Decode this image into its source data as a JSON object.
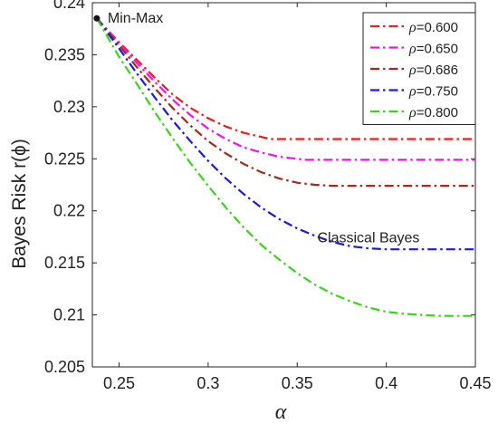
{
  "chart_data": {
    "type": "line",
    "title": "",
    "xlabel": "α",
    "ylabel": "Bayes Risk r(ϕ)",
    "xlim": [
      0.235,
      0.45
    ],
    "ylim": [
      0.205,
      0.24
    ],
    "xticks": [
      0.25,
      0.3,
      0.35,
      0.4,
      0.45
    ],
    "xtick_labels": [
      "0.25",
      "0.3",
      "0.35",
      "0.4",
      "0.45"
    ],
    "yticks": [
      0.205,
      0.21,
      0.215,
      0.22,
      0.225,
      0.23,
      0.235,
      0.24
    ],
    "ytick_labels": [
      "0.205",
      "0.21",
      "0.215",
      "0.22",
      "0.225",
      "0.23",
      "0.235",
      "0.24"
    ],
    "grid": false,
    "legend_position": "top-right",
    "series": [
      {
        "name": "ρ=0.600",
        "symbol": "ρ",
        "value_text": "=0.600",
        "color": "#ee1c1c",
        "x": [
          0.2375,
          0.25,
          0.26,
          0.27,
          0.28,
          0.29,
          0.3,
          0.31,
          0.32,
          0.33,
          0.335,
          0.34,
          0.36,
          0.38,
          0.4,
          0.42,
          0.45
        ],
        "y": [
          0.2385,
          0.2362,
          0.2345,
          0.2328,
          0.2312,
          0.2299,
          0.2289,
          0.2281,
          0.2275,
          0.2271,
          0.2269,
          0.2269,
          0.2269,
          0.2269,
          0.2269,
          0.2269,
          0.2269
        ]
      },
      {
        "name": "ρ=0.650",
        "symbol": "ρ",
        "value_text": "=0.650",
        "color": "#ee14ee",
        "x": [
          0.2375,
          0.25,
          0.26,
          0.27,
          0.28,
          0.29,
          0.3,
          0.31,
          0.32,
          0.33,
          0.34,
          0.35,
          0.355,
          0.36,
          0.38,
          0.4,
          0.42,
          0.45
        ],
        "y": [
          0.2385,
          0.2361,
          0.2342,
          0.2324,
          0.2307,
          0.2292,
          0.2279,
          0.2269,
          0.2261,
          0.2256,
          0.2252,
          0.225,
          0.2249,
          0.2249,
          0.2249,
          0.2249,
          0.2249,
          0.2249
        ]
      },
      {
        "name": "ρ=0.686",
        "symbol": "ρ",
        "value_text": "=0.686",
        "color": "#a52a1a",
        "x": [
          0.2375,
          0.25,
          0.26,
          0.27,
          0.28,
          0.29,
          0.3,
          0.31,
          0.32,
          0.33,
          0.34,
          0.35,
          0.36,
          0.37,
          0.38,
          0.4,
          0.42,
          0.45
        ],
        "y": [
          0.2385,
          0.2359,
          0.2338,
          0.2318,
          0.2299,
          0.2282,
          0.2267,
          0.2255,
          0.2245,
          0.2237,
          0.2231,
          0.2227,
          0.2225,
          0.2224,
          0.2224,
          0.2224,
          0.2224,
          0.2224
        ]
      },
      {
        "name": "ρ=0.750",
        "symbol": "ρ",
        "value_text": "=0.750",
        "color": "#1a1adb",
        "x": [
          0.2375,
          0.25,
          0.26,
          0.27,
          0.28,
          0.29,
          0.3,
          0.31,
          0.32,
          0.33,
          0.34,
          0.35,
          0.36,
          0.37,
          0.38,
          0.39,
          0.4,
          0.41,
          0.42,
          0.45
        ],
        "y": [
          0.2385,
          0.2356,
          0.2332,
          0.2309,
          0.2287,
          0.2267,
          0.2248,
          0.2231,
          0.2216,
          0.2203,
          0.2192,
          0.2183,
          0.2176,
          0.217,
          0.2166,
          0.2164,
          0.2163,
          0.2163,
          0.2163,
          0.2163
        ]
      },
      {
        "name": "ρ=0.800",
        "symbol": "ρ",
        "value_text": "=0.800",
        "color": "#3bd41a",
        "x": [
          0.2375,
          0.25,
          0.26,
          0.27,
          0.28,
          0.29,
          0.3,
          0.31,
          0.32,
          0.33,
          0.34,
          0.35,
          0.36,
          0.37,
          0.38,
          0.39,
          0.4,
          0.41,
          0.42,
          0.43,
          0.44,
          0.45
        ],
        "y": [
          0.2385,
          0.2348,
          0.2322,
          0.2295,
          0.227,
          0.2246,
          0.2224,
          0.2203,
          0.2184,
          0.2167,
          0.2153,
          0.214,
          0.2129,
          0.212,
          0.2113,
          0.2107,
          0.2103,
          0.2101,
          0.21,
          0.2099,
          0.2099,
          0.2099
        ]
      }
    ],
    "annotations": [
      {
        "id": "minmax",
        "text": "Min-Max",
        "x": 0.2375,
        "y": 0.2385
      },
      {
        "id": "bayes",
        "text": "Classical Bayes",
        "x": 0.39,
        "y": 0.2174
      }
    ]
  }
}
